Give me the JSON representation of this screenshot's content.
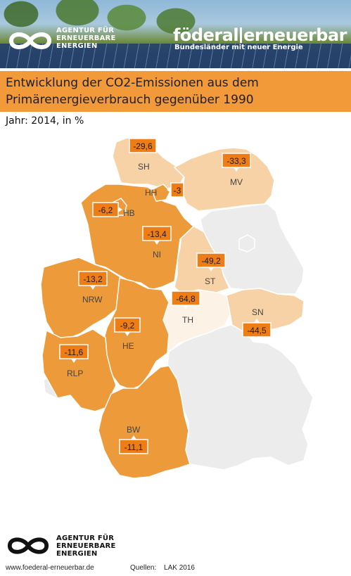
{
  "header": {
    "agentur_lines": [
      "AGENTUR FÜR",
      "ERNEUERBARE",
      "ENERGIEN"
    ],
    "brand_left": "föderal",
    "brand_right": "erneuerbar",
    "brand_sub": "Bundesländer mit neuer Energie"
  },
  "title": {
    "line1": "Entwicklung der CO2-Emissionen aus dem",
    "line2": "Primärenergieverbrauch gegenüber 1990"
  },
  "subtitle": "Jahr: 2014, in %",
  "colors": {
    "strong": "#ed9a3b",
    "light": "#f7d2a6",
    "pale": "#fdf2e6",
    "nodata": "#ececec",
    "border": "#ffffff",
    "label_box": "#ef7d16"
  },
  "states": [
    {
      "code": "SH",
      "value": "-29,6"
    },
    {
      "code": "HH",
      "value": "-3"
    },
    {
      "code": "MV",
      "value": "-33,3"
    },
    {
      "code": "HB",
      "value": "-6,2"
    },
    {
      "code": "NI",
      "value": "-13,4"
    },
    {
      "code": "ST",
      "value": "-49,2"
    },
    {
      "code": "NRW",
      "value": "-13,2"
    },
    {
      "code": "TH",
      "value": "-64,8"
    },
    {
      "code": "SN",
      "value": "-44,5"
    },
    {
      "code": "HE",
      "value": "-9,2"
    },
    {
      "code": "RLP",
      "value": "-11,6"
    },
    {
      "code": "BW",
      "value": "-11,1"
    }
  ],
  "footer": {
    "agentur_lines": [
      "AGENTUR FÜR",
      "ERNEUERBARE",
      "ENERGIEN"
    ],
    "url": "www.foederal-erneuerbar.de",
    "source_label": "Quellen:",
    "source_value": "LAK 2016"
  }
}
